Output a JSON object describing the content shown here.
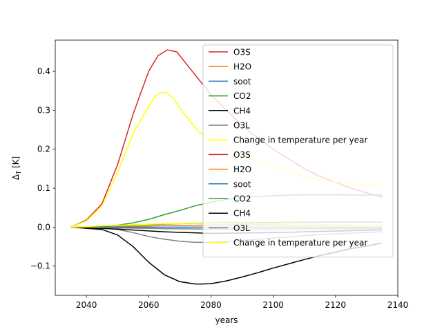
{
  "chart_data": {
    "type": "line",
    "title": "",
    "xlabel": "years",
    "ylabel_base": "Δ",
    "ylabel_sub": "T",
    "ylabel_unit": " [K]",
    "xlim": [
      2030,
      2140
    ],
    "ylim": [
      -0.175,
      0.48
    ],
    "xticks": [
      2040,
      2060,
      2080,
      2100,
      2120,
      2140
    ],
    "yticks": [
      -0.1,
      0.0,
      0.1,
      0.2,
      0.3,
      0.4
    ],
    "ytick_labels": [
      "−0.1",
      "0.0",
      "0.1",
      "0.2",
      "0.3",
      "0.4"
    ],
    "grid": false,
    "legend_position": "upper-right",
    "series": [
      {
        "name": "O3S",
        "color": "#d62728",
        "legend_only": false,
        "x": [
          2035,
          2040,
          2045,
          2050,
          2055,
          2060,
          2063,
          2066,
          2069,
          2072,
          2075,
          2080,
          2085,
          2090,
          2095,
          2100,
          2105,
          2110,
          2115,
          2120,
          2125,
          2130,
          2135
        ],
        "y": [
          0.0,
          0.018,
          0.06,
          0.16,
          0.29,
          0.4,
          0.44,
          0.455,
          0.45,
          0.42,
          0.39,
          0.34,
          0.3,
          0.26,
          0.23,
          0.2,
          0.175,
          0.15,
          0.13,
          0.115,
          0.1,
          0.088,
          0.077
        ]
      },
      {
        "name": "H2O",
        "color": "#ff7f0e",
        "legend_only": false,
        "x": [
          2035,
          2045,
          2055,
          2065,
          2075,
          2085,
          2100,
          2115,
          2135
        ],
        "y": [
          0.0,
          0.0,
          0.002,
          0.004,
          0.005,
          0.006,
          0.006,
          0.005,
          0.005
        ]
      },
      {
        "name": "soot",
        "color": "#1f77b4",
        "legend_only": false,
        "x": [
          2035,
          2050,
          2070,
          2100,
          2135
        ],
        "y": [
          0.0,
          0.0,
          0.0,
          0.0,
          0.0
        ]
      },
      {
        "name": "CO2",
        "color": "#2ca02c",
        "legend_only": false,
        "x": [
          2035,
          2045,
          2050,
          2055,
          2060,
          2065,
          2070,
          2075,
          2080,
          2085,
          2090,
          2095,
          2100,
          2110,
          2120,
          2135
        ],
        "y": [
          0.0,
          0.002,
          0.005,
          0.011,
          0.02,
          0.032,
          0.043,
          0.055,
          0.064,
          0.071,
          0.076,
          0.079,
          0.081,
          0.083,
          0.083,
          0.082
        ]
      },
      {
        "name": "CH4",
        "color": "#000000",
        "legend_only": false,
        "x": [
          2035,
          2045,
          2050,
          2055,
          2060,
          2065,
          2070,
          2075,
          2077,
          2080,
          2085,
          2090,
          2095,
          2100,
          2105,
          2110,
          2115,
          2120,
          2125,
          2130,
          2135
        ],
        "y": [
          0.0,
          -0.006,
          -0.02,
          -0.05,
          -0.09,
          -0.122,
          -0.14,
          -0.146,
          -0.146,
          -0.145,
          -0.138,
          -0.128,
          -0.117,
          -0.105,
          -0.094,
          -0.083,
          -0.073,
          -0.064,
          -0.055,
          -0.048,
          -0.041
        ]
      },
      {
        "name": "O3L",
        "color": "#7f7f7f",
        "legend_only": false,
        "x": [
          2035,
          2045,
          2050,
          2055,
          2060,
          2065,
          2070,
          2075,
          2080,
          2085,
          2090,
          2100,
          2110,
          2120,
          2135
        ],
        "y": [
          0.0,
          -0.002,
          -0.006,
          -0.014,
          -0.024,
          -0.031,
          -0.036,
          -0.039,
          -0.039,
          -0.037,
          -0.034,
          -0.028,
          -0.022,
          -0.017,
          -0.012
        ]
      },
      {
        "name": "Change in temperature per year",
        "color": "#ffff00",
        "legend_only": false,
        "x": [
          2035,
          2040,
          2045,
          2050,
          2055,
          2060,
          2062,
          2064,
          2066,
          2068,
          2070,
          2073,
          2076,
          2080,
          2085,
          2090,
          2095,
          2100,
          2105,
          2110,
          2115,
          2120,
          2125,
          2130,
          2135
        ],
        "y": [
          0.0,
          0.016,
          0.055,
          0.14,
          0.24,
          0.31,
          0.335,
          0.346,
          0.345,
          0.33,
          0.305,
          0.275,
          0.245,
          0.225,
          0.205,
          0.185,
          0.168,
          0.153,
          0.14,
          0.13,
          0.121,
          0.115,
          0.111,
          0.107,
          0.105
        ]
      },
      {
        "name": "O3S",
        "color": "#d62728",
        "legend_only": true,
        "x": [],
        "y": []
      },
      {
        "name": "H2O",
        "color": "#ff7f0e",
        "legend_only": true,
        "x": [],
        "y": []
      },
      {
        "name": "soot",
        "color": "#1f77b4",
        "legend_only": true,
        "x": [],
        "y": []
      },
      {
        "name": "CO2",
        "color": "#2ca02c",
        "legend_only": false,
        "x": [
          2035,
          2050,
          2065,
          2080,
          2100,
          2120,
          2135
        ],
        "y": [
          0.0,
          0.004,
          0.008,
          0.011,
          0.012,
          0.013,
          0.013
        ]
      },
      {
        "name": "CH4",
        "color": "#000000",
        "legend_only": false,
        "x": [
          2035,
          2050,
          2065,
          2080,
          2100,
          2120,
          2135
        ],
        "y": [
          0.0,
          -0.005,
          -0.012,
          -0.016,
          -0.014,
          -0.01,
          -0.007
        ]
      },
      {
        "name": "O3L",
        "color": "#7f7f7f",
        "legend_only": false,
        "x": [
          2035,
          2050,
          2065,
          2080,
          2100,
          2120,
          2135
        ],
        "y": [
          0.0,
          -0.002,
          -0.004,
          -0.005,
          -0.005,
          -0.004,
          -0.004
        ]
      },
      {
        "name": "Change in temperature per year",
        "color": "#ffff00",
        "legend_only": false,
        "x": [
          2035,
          2050,
          2065,
          2080,
          2100,
          2120,
          2135
        ],
        "y": [
          0.0,
          0.005,
          0.009,
          0.01,
          0.008,
          0.006,
          0.005
        ]
      }
    ]
  }
}
